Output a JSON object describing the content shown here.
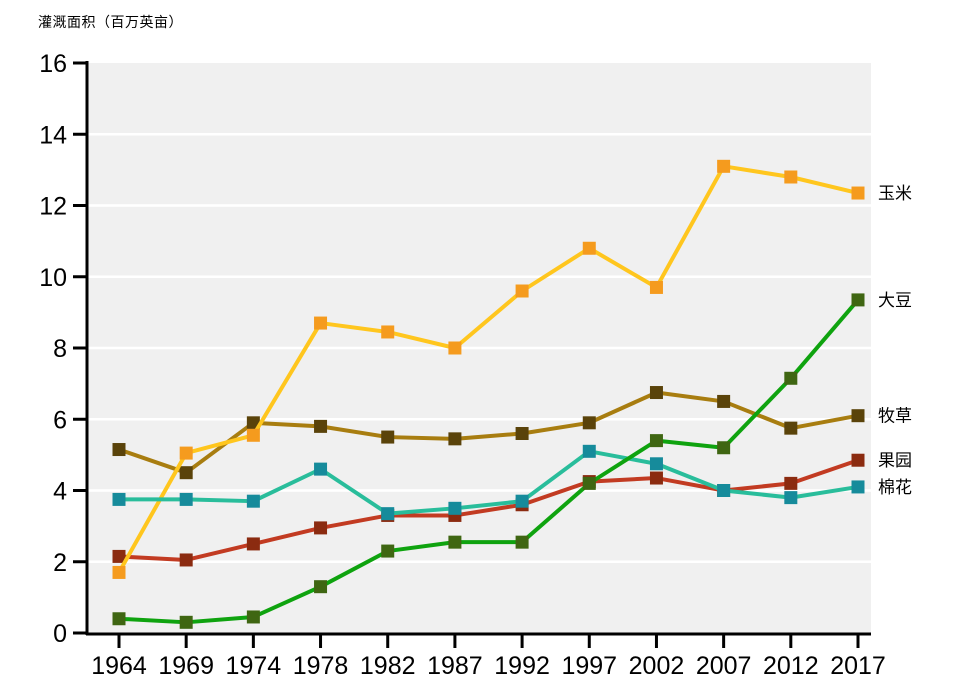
{
  "chart_title": "灌溉面积（百万英亩）",
  "chart_data": {
    "type": "line",
    "title": "灌溉面积（百万英亩）",
    "ylabel": "灌溉面积（百万英亩）",
    "xlabel": "",
    "categories": [
      "1964",
      "1969",
      "1974",
      "1978",
      "1982",
      "1987",
      "1992",
      "1997",
      "2002",
      "2007",
      "2012",
      "2017"
    ],
    "ylim": [
      0,
      16
    ],
    "y_ticks": [
      0,
      2,
      4,
      6,
      8,
      10,
      12,
      14,
      16
    ],
    "grid": "horizontal-white-on-gray-panel",
    "legend_position": "right-of-last-point",
    "plot_bg": "#F0F0F0",
    "grid_color": "#FFFFFF",
    "axis_color": "#000000",
    "series": [
      {
        "name": "果园",
        "line_color": "#C23B22",
        "marker_color": "#8B2B10",
        "values": [
          2.15,
          2.05,
          2.5,
          2.95,
          3.3,
          3.3,
          3.6,
          4.25,
          4.35,
          4.0,
          4.2,
          4.85
        ]
      },
      {
        "name": "牧草",
        "line_color": "#A87D10",
        "marker_color": "#5A430A",
        "values": [
          5.15,
          4.5,
          5.9,
          5.8,
          5.5,
          5.45,
          5.6,
          5.9,
          6.75,
          6.5,
          5.75,
          6.1
        ]
      },
      {
        "name": "玉米",
        "line_color": "#FFC61E",
        "marker_color": "#F59B1E",
        "values": [
          1.7,
          5.05,
          5.55,
          8.7,
          8.45,
          8.0,
          9.6,
          10.8,
          9.7,
          13.1,
          12.8,
          12.35
        ]
      },
      {
        "name": "棉花",
        "line_color": "#29BD9B",
        "marker_color": "#168B9B",
        "values": [
          3.75,
          3.75,
          3.7,
          4.6,
          3.35,
          3.5,
          3.7,
          5.1,
          4.75,
          4.0,
          3.8,
          4.1
        ]
      },
      {
        "name": "大豆",
        "line_color": "#0FA30F",
        "marker_color": "#3F6612",
        "values": [
          0.4,
          0.3,
          0.45,
          1.3,
          2.3,
          2.55,
          2.55,
          4.2,
          5.4,
          5.2,
          7.15,
          9.35
        ]
      }
    ]
  }
}
